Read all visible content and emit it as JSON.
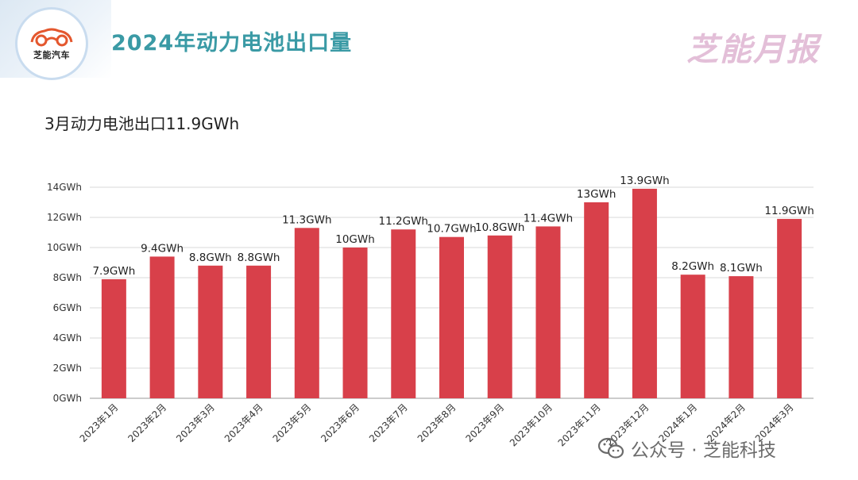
{
  "header": {
    "title": "2024年动力电池出口量",
    "brand": "芝能月报",
    "logo_text": "芝能汽车"
  },
  "subtitle": "3月动力电池出口11.9GWh",
  "watermark": "公众号 · 芝能科技",
  "colors": {
    "bar": "#d8404a",
    "title": "#3a9aa5",
    "brand": "#e3bfd8",
    "grid": "#d9d9d9"
  },
  "chart_data": {
    "type": "bar",
    "title": "3月动力电池出口11.9GWh",
    "xlabel": "",
    "ylabel": "",
    "unit": "GWh",
    "categories": [
      "2023年1月",
      "2023年2月",
      "2023年3月",
      "2023年4月",
      "2023年5月",
      "2023年6月",
      "2023年7月",
      "2023年8月",
      "2023年9月",
      "2023年10月",
      "2023年11月",
      "2023年12月",
      "2024年1月",
      "2024年2月",
      "2024年3月"
    ],
    "values": [
      7.9,
      9.4,
      8.8,
      8.8,
      11.3,
      10,
      11.2,
      10.7,
      10.8,
      11.4,
      13,
      13.9,
      8.2,
      8.1,
      11.9
    ],
    "data_labels": [
      "7.9GWh",
      "9.4GWh",
      "8.8GWh",
      "8.8GWh",
      "11.3GWh",
      "10GWh",
      "11.2GWh",
      "10.7GWh",
      "10.8GWh",
      "11.4GWh",
      "13GWh",
      "13.9GWh",
      "8.2GWh",
      "8.1GWh",
      "11.9GWh"
    ],
    "ylim": [
      0,
      14
    ],
    "yticks": [
      0,
      2,
      4,
      6,
      8,
      10,
      12,
      14
    ],
    "ytick_labels": [
      "0GWh",
      "2GWh",
      "4GWh",
      "6GWh",
      "8GWh",
      "10GWh",
      "12GWh",
      "14GWh"
    ],
    "grid": true,
    "legend": "none"
  }
}
